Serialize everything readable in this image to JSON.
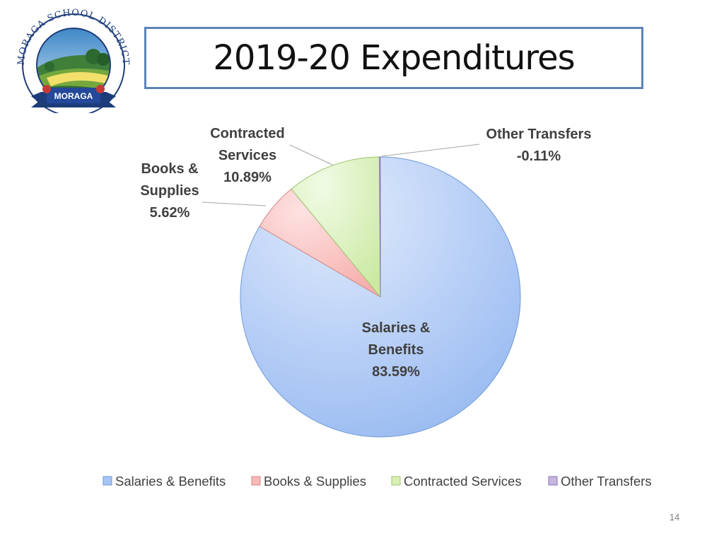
{
  "logo": {
    "name": "Moraga School District seal",
    "arc_text": "MORAGA SCHOOL DISTRICT",
    "ribbon_text": "MORAGA"
  },
  "slide": {
    "title": "2019-20 Expenditures",
    "page_number": "14"
  },
  "colors": {
    "title_border": "#5b84b8",
    "salaries": "#a6c4f4",
    "books": "#f8b9b8",
    "contracted": "#d8f0b4",
    "other": "#c5b6df"
  },
  "chart_data": {
    "type": "pie",
    "title": "",
    "slices": [
      {
        "name": "Salaries & Benefits",
        "label_lines": [
          "Salaries &",
          "Benefits",
          "83.59%"
        ],
        "value": 83.59,
        "color": "#a6c4f4",
        "edge": "#6e9ad6"
      },
      {
        "name": "Books & Supplies",
        "label_lines": [
          "Books &",
          "Supplies",
          "5.62%"
        ],
        "value": 5.62,
        "color": "#f8b9b8",
        "edge": "#d98784"
      },
      {
        "name": "Contracted Services",
        "label_lines": [
          "Contracted",
          "Services",
          "10.89%"
        ],
        "value": 10.89,
        "color": "#d8f0b4",
        "edge": "#9fc56f"
      },
      {
        "name": "Other Transfers",
        "label_lines": [
          "Other Transfers",
          "-0.11%"
        ],
        "value": -0.11,
        "color": "#c5b6df",
        "edge": "#8a72b8"
      }
    ],
    "legend": {
      "position": "bottom",
      "entries": [
        "Salaries & Benefits",
        "Books & Supplies",
        "Contracted Services",
        "Other Transfers"
      ]
    }
  }
}
